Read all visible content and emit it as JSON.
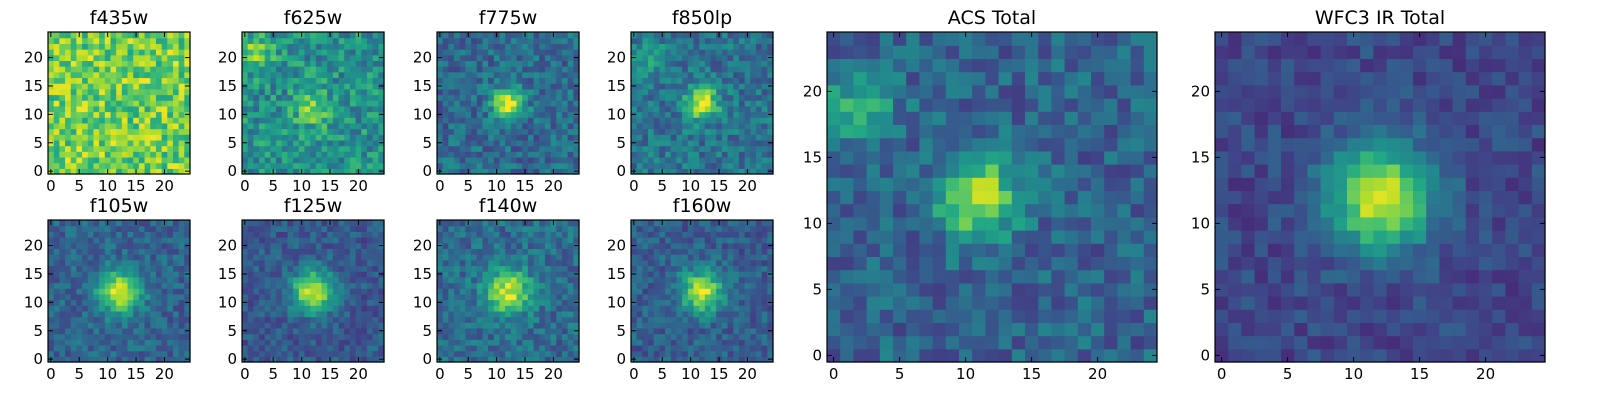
{
  "figure": {
    "colormap": "viridis",
    "pixel_grid": [
      25,
      25
    ],
    "panels": [
      {
        "id": "f435w",
        "title": "f435w",
        "xticks": [
          "0",
          "5",
          "10",
          "15",
          "20"
        ],
        "yticks": [
          "0",
          "5",
          "10",
          "15",
          "20"
        ],
        "center": [
          11,
          11
        ],
        "peak": 0.0,
        "sigma": 3.0,
        "background": 0.78,
        "noise": 0.2
      },
      {
        "id": "f625w",
        "title": "f625w",
        "xticks": [
          "0",
          "5",
          "10",
          "15",
          "20"
        ],
        "yticks": [
          "0",
          "5",
          "10",
          "15",
          "20"
        ],
        "center": [
          12,
          11
        ],
        "peak": 0.3,
        "sigma": 2.2,
        "background": 0.5,
        "noise": 0.18,
        "extra_blob": {
          "center": [
            2,
            21
          ],
          "peak": 0.3,
          "sigma": 2.0
        }
      },
      {
        "id": "f775w",
        "title": "f775w",
        "xticks": [
          "0",
          "5",
          "10",
          "15",
          "20"
        ],
        "yticks": [
          "0",
          "5",
          "10",
          "15",
          "20"
        ],
        "center": [
          12,
          12
        ],
        "peak": 0.62,
        "sigma": 1.9,
        "background": 0.35,
        "noise": 0.15
      },
      {
        "id": "f850lp",
        "title": "f850lp",
        "xticks": [
          "0",
          "5",
          "10",
          "15",
          "20"
        ],
        "yticks": [
          "0",
          "5",
          "10",
          "15",
          "20"
        ],
        "center": [
          12,
          12
        ],
        "peak": 0.6,
        "sigma": 2.0,
        "background": 0.38,
        "noise": 0.15,
        "extra_blob": {
          "center": [
            3,
            20
          ],
          "peak": 0.2,
          "sigma": 2.0
        }
      },
      {
        "id": "f105w",
        "title": "f105w",
        "xticks": [
          "0",
          "5",
          "10",
          "15",
          "20"
        ],
        "yticks": [
          "0",
          "5",
          "10",
          "15",
          "20"
        ],
        "center": [
          12,
          12
        ],
        "peak": 0.6,
        "sigma": 2.7,
        "background": 0.32,
        "noise": 0.12
      },
      {
        "id": "f125w",
        "title": "f125w",
        "xticks": [
          "0",
          "5",
          "10",
          "15",
          "20"
        ],
        "yticks": [
          "0",
          "5",
          "10",
          "15",
          "20"
        ],
        "center": [
          12,
          12
        ],
        "peak": 0.65,
        "sigma": 2.6,
        "background": 0.28,
        "noise": 0.11
      },
      {
        "id": "f140w",
        "title": "f140w",
        "xticks": [
          "0",
          "5",
          "10",
          "15",
          "20"
        ],
        "yticks": [
          "0",
          "5",
          "10",
          "15",
          "20"
        ],
        "center": [
          12,
          12
        ],
        "peak": 0.58,
        "sigma": 2.8,
        "background": 0.35,
        "noise": 0.14
      },
      {
        "id": "f160w",
        "title": "f160w",
        "xticks": [
          "0",
          "5",
          "10",
          "15",
          "20"
        ],
        "yticks": [
          "0",
          "5",
          "10",
          "15",
          "20"
        ],
        "center": [
          12,
          12
        ],
        "peak": 0.62,
        "sigma": 2.6,
        "background": 0.3,
        "noise": 0.12
      },
      {
        "id": "acs-total",
        "title": "ACS Total",
        "xticks": [
          "0",
          "5",
          "10",
          "15",
          "20"
        ],
        "yticks": [
          "0",
          "5",
          "10",
          "15",
          "20"
        ],
        "center": [
          11,
          12
        ],
        "peak": 0.6,
        "sigma": 2.1,
        "background": 0.32,
        "noise": 0.14,
        "extra_blob": {
          "center": [
            2,
            19
          ],
          "peak": 0.35,
          "sigma": 1.8
        }
      },
      {
        "id": "wfc3-ir-total",
        "title": "WFC3 IR Total",
        "xticks": [
          "0",
          "5",
          "10",
          "15",
          "20"
        ],
        "yticks": [
          "0",
          "5",
          "10",
          "15",
          "20"
        ],
        "center": [
          12,
          12
        ],
        "peak": 0.72,
        "sigma": 2.8,
        "background": 0.22,
        "noise": 0.09
      }
    ]
  }
}
